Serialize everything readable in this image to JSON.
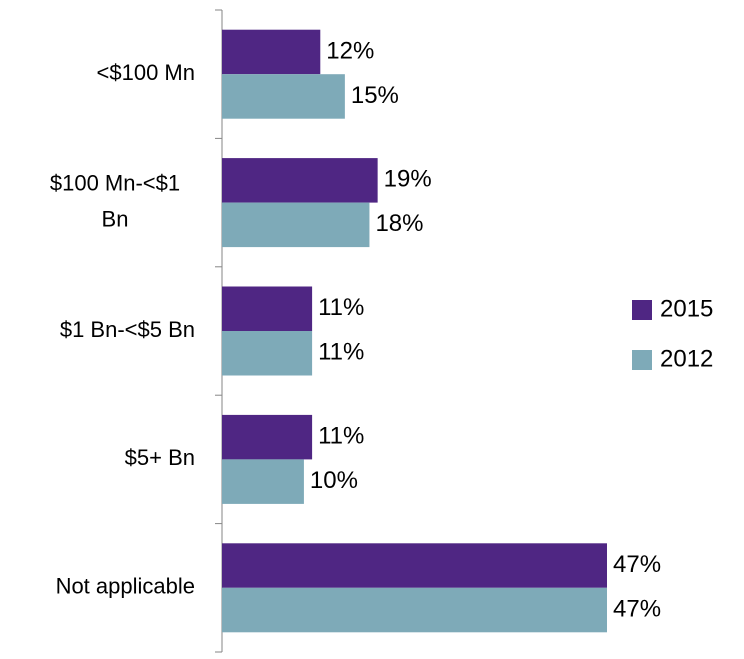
{
  "chart_data": {
    "type": "bar",
    "orientation": "horizontal",
    "categories": [
      "<$100 Mn",
      "$100 Mn-<$1 Bn",
      "$1 Bn-<$5 Bn",
      "$5+ Bn",
      "Not applicable"
    ],
    "series": [
      {
        "name": "2015",
        "color": "#4f2683",
        "values": [
          12,
          19,
          11,
          11,
          47
        ],
        "value_labels": [
          "12%",
          "19%",
          "11%",
          "11%",
          "47%"
        ]
      },
      {
        "name": "2012",
        "color": "#7eaab8",
        "values": [
          15,
          18,
          11,
          10,
          47
        ],
        "value_labels": [
          "15%",
          "18%",
          "11%",
          "10%",
          "47%"
        ]
      }
    ],
    "legend": "right"
  }
}
